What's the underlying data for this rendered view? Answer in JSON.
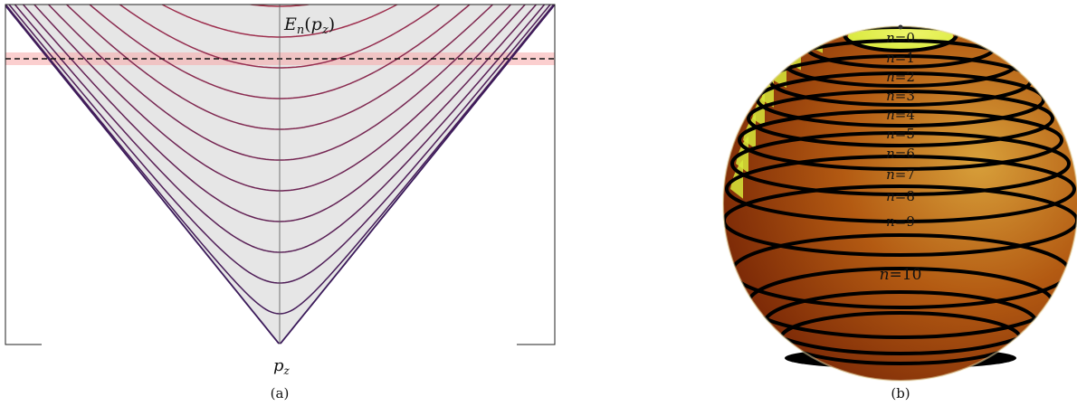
{
  "panel_a": {
    "y_label_main": "E",
    "y_label_sub": "n",
    "y_label_open": "(",
    "y_label_var": "p",
    "y_label_var_sub": "z",
    "y_label_close": ")",
    "x_label_var": "p",
    "x_label_sub": "z",
    "caption": "(a)",
    "band_count": 22,
    "colors": {
      "low": "#3b1a5a",
      "mid": "#a3304d",
      "high": "#ee7a1f",
      "fill": "#e6e6e6",
      "fermi_line": "#111111",
      "fermi_band": "#f7a8a8"
    }
  },
  "panel_b": {
    "caption": "(b)",
    "levels": [
      {
        "n": "n",
        "eq": "=",
        "val": "0"
      },
      {
        "n": "n",
        "eq": "=",
        "val": "1"
      },
      {
        "n": "n",
        "eq": "=",
        "val": "2"
      },
      {
        "n": "n",
        "eq": "=",
        "val": "3"
      },
      {
        "n": "n",
        "eq": "=",
        "val": "4"
      },
      {
        "n": "n",
        "eq": "=",
        "val": "5"
      },
      {
        "n": "n",
        "eq": "=",
        "val": "6"
      },
      {
        "n": "n",
        "eq": "=",
        "val": "7"
      },
      {
        "n": "n",
        "eq": "=",
        "val": "8"
      },
      {
        "n": "n",
        "eq": "=",
        "val": "9"
      },
      {
        "n": "n",
        "eq": "=",
        "val": "10"
      }
    ],
    "colors": {
      "sphere_dark": "#6e1d04",
      "sphere_mid": "#b35a12",
      "sphere_light": "#d8a03a",
      "inner_yellow": "#d7e83a",
      "ring": "#000000"
    }
  }
}
